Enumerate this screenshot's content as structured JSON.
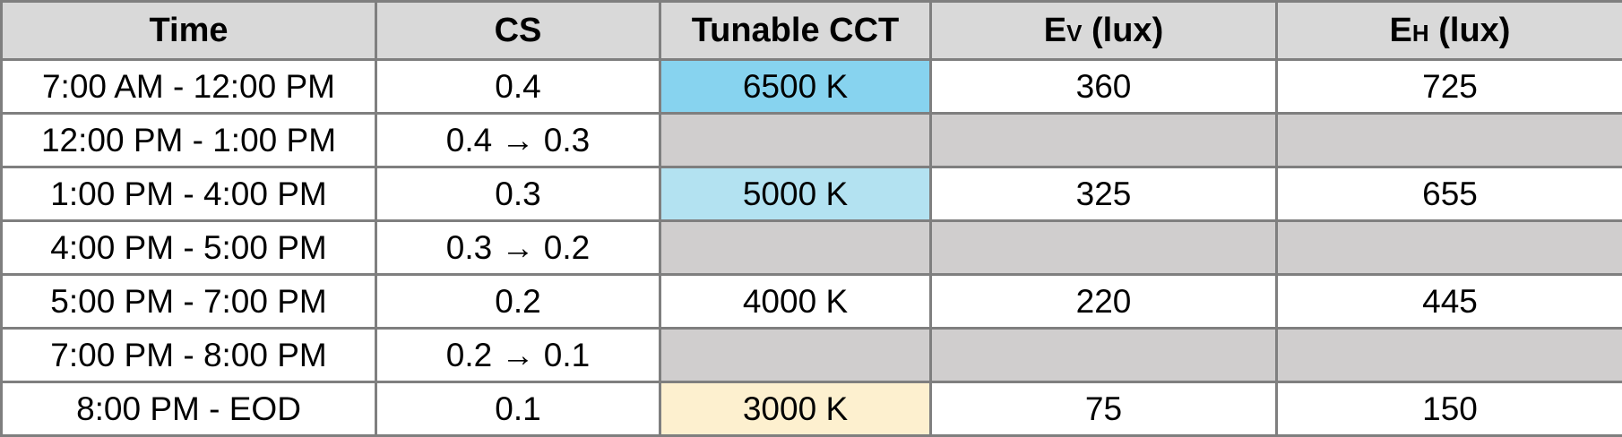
{
  "table": {
    "headers": {
      "time": "Time",
      "cs": "CS",
      "cct": "Tunable CCT",
      "ev_main": "E",
      "ev_sub": "V",
      "ev_unit": " (lux)",
      "eh_main": "E",
      "eh_sub": "H",
      "eh_unit": " (lux)"
    },
    "rows": [
      {
        "time": "7:00 AM - 12:00 PM",
        "cs": "0.4",
        "cct": "6500 K",
        "ev": "360",
        "eh": "725",
        "cct_color": "#87d3ef",
        "transition": false
      },
      {
        "time": "12:00 PM - 1:00 PM",
        "cs": "0.4 → 0.3",
        "cct": "",
        "ev": "",
        "eh": "",
        "cct_color": "#d0cece",
        "transition": true
      },
      {
        "time": "1:00 PM - 4:00 PM",
        "cs": "0.3",
        "cct": "5000 K",
        "ev": "325",
        "eh": "655",
        "cct_color": "#b3e2f1",
        "transition": false
      },
      {
        "time": "4:00 PM - 5:00 PM",
        "cs": "0.3 → 0.2",
        "cct": "",
        "ev": "",
        "eh": "",
        "cct_color": "#d0cece",
        "transition": true
      },
      {
        "time": "5:00 PM - 7:00 PM",
        "cs": "0.2",
        "cct": "4000 K",
        "ev": "220",
        "eh": "445",
        "cct_color": "#ffffff",
        "transition": false
      },
      {
        "time": "7:00 PM - 8:00 PM",
        "cs": "0.2 → 0.1",
        "cct": "",
        "ev": "",
        "eh": "",
        "cct_color": "#d0cece",
        "transition": true
      },
      {
        "time": "8:00 PM - EOD",
        "cs": "0.1",
        "cct": "3000 K",
        "ev": "75",
        "eh": "150",
        "cct_color": "#fdf0cf",
        "transition": false
      }
    ]
  },
  "colors": {
    "header_bg": "#d9d9d9",
    "border": "#7f7f7f",
    "transition_bg": "#d0cece"
  }
}
